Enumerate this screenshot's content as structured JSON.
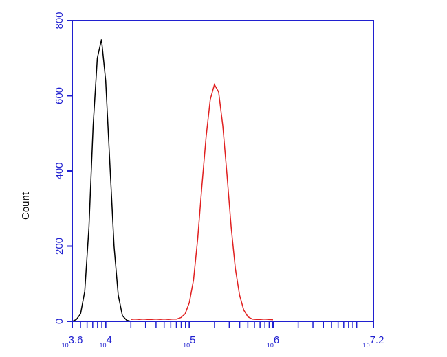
{
  "chart_data": {
    "type": "line",
    "y_label": "Count",
    "xtick_base": "10",
    "xlim": [
      3.6,
      7.2
    ],
    "xticks": [
      3.6,
      4,
      5,
      6,
      7.2
    ],
    "xminorticks": [
      3.699,
      3.778,
      3.845,
      3.903,
      3.954,
      4.301,
      4.477,
      4.602,
      4.699,
      4.778,
      4.845,
      4.903,
      4.954,
      5.301,
      5.477,
      5.602,
      5.699,
      5.778,
      5.845,
      5.903,
      5.954,
      6.301,
      6.477,
      6.602,
      6.699,
      6.778,
      6.845,
      6.903,
      6.954,
      7
    ],
    "ylim": [
      0,
      800
    ],
    "yticks": [
      0,
      200,
      400,
      600,
      800
    ],
    "axis_color": "#2020d0",
    "x": [
      3.6,
      3.65,
      3.7,
      3.75,
      3.8,
      3.85,
      3.9,
      3.95,
      4.0,
      4.05,
      4.1,
      4.15,
      4.2,
      4.25,
      4.3,
      4.35,
      4.4,
      4.45,
      4.5,
      4.55,
      4.6,
      4.65,
      4.7,
      4.75,
      4.8,
      4.85,
      4.9,
      4.95,
      5.0,
      5.05,
      5.1,
      5.15,
      5.2,
      5.25,
      5.3,
      5.35,
      5.4,
      5.45,
      5.5,
      5.55,
      5.6,
      5.65,
      5.7,
      5.75,
      5.8,
      5.85,
      5.9,
      5.95,
      6.0
    ],
    "series": [
      {
        "color": "#000000",
        "values": [
          0,
          5,
          20,
          80,
          250,
          520,
          700,
          750,
          640,
          420,
          200,
          70,
          15,
          3,
          0,
          null,
          null,
          null,
          null,
          null,
          null,
          null,
          null,
          null,
          null,
          null,
          null,
          null,
          null,
          null,
          null,
          null,
          null,
          null,
          null,
          null,
          null,
          null,
          null,
          null,
          null,
          null,
          null,
          null,
          null,
          null,
          null,
          null,
          null
        ]
      },
      {
        "color": "#e02020",
        "values": [
          null,
          null,
          null,
          null,
          null,
          null,
          null,
          null,
          null,
          null,
          null,
          null,
          null,
          null,
          5,
          6,
          5,
          6,
          5,
          5,
          6,
          5,
          6,
          5,
          6,
          6,
          10,
          20,
          50,
          110,
          220,
          360,
          490,
          590,
          630,
          610,
          520,
          390,
          250,
          140,
          70,
          30,
          12,
          6,
          5,
          5,
          6,
          5,
          4
        ]
      }
    ]
  }
}
